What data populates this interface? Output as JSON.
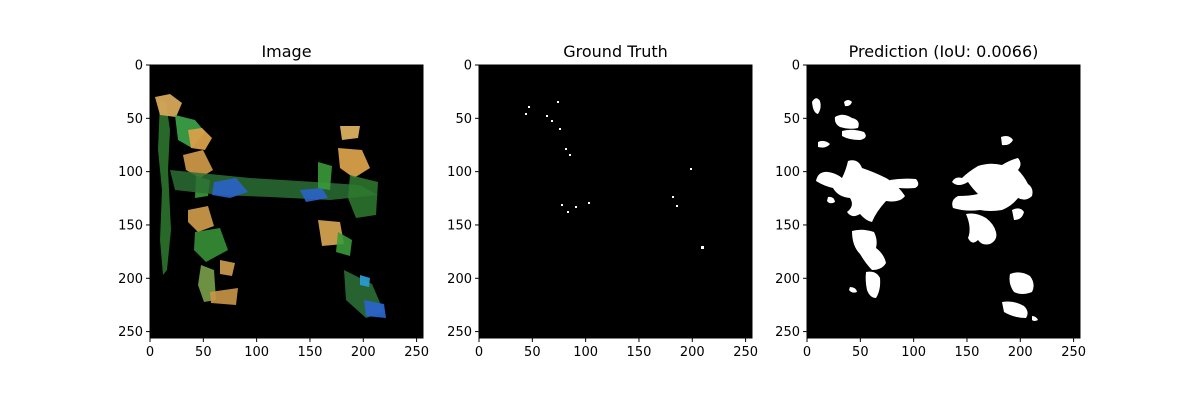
{
  "figure": {
    "background": "#ffffff"
  },
  "chart_data": [
    {
      "type": "image",
      "title": "Image",
      "xlabel": "",
      "ylabel": "",
      "xlim": [
        0,
        256
      ],
      "ylim": [
        256,
        0
      ],
      "xticks": [
        0,
        50,
        100,
        150,
        200,
        250
      ],
      "yticks": [
        0,
        50,
        100,
        150,
        200,
        250
      ],
      "content": "dark RGB image with sparse colored plant-like regions",
      "colors": [
        "#000000",
        "#e0b060",
        "#3a9a3a",
        "#2060d0"
      ]
    },
    {
      "type": "image",
      "title": "Ground Truth",
      "xlabel": "",
      "ylabel": "",
      "xlim": [
        0,
        256
      ],
      "ylim": [
        256,
        0
      ],
      "xticks": [
        0,
        50,
        100,
        150,
        200,
        250
      ],
      "yticks": [
        0,
        50,
        100,
        150,
        200,
        250
      ],
      "content": "binary mask with sparse small white specks",
      "colors": [
        "#000000",
        "#ffffff"
      ]
    },
    {
      "type": "image",
      "title": "Prediction (IoU: 0.0066)",
      "xlabel": "",
      "ylabel": "",
      "xlim": [
        0,
        256
      ],
      "ylim": [
        256,
        0
      ],
      "xticks": [
        0,
        50,
        100,
        150,
        200,
        250
      ],
      "yticks": [
        0,
        50,
        100,
        150,
        200,
        250
      ],
      "iou": 0.0066,
      "content": "binary mask with larger white blobs",
      "colors": [
        "#000000",
        "#ffffff"
      ]
    }
  ]
}
